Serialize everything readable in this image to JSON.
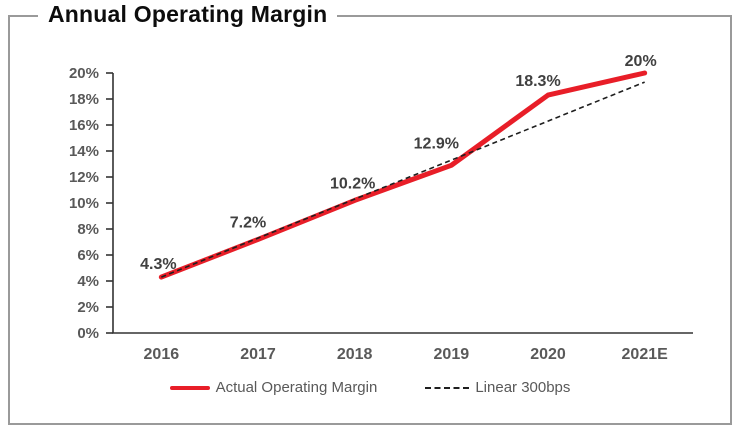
{
  "title": "Annual Operating Margin",
  "chart_data": {
    "type": "line",
    "categories": [
      "2016",
      "2017",
      "2018",
      "2019",
      "2020",
      "2021E"
    ],
    "series": [
      {
        "name": "Actual Operating Margin",
        "values": [
          4.3,
          7.2,
          10.2,
          12.9,
          18.3,
          20.0
        ],
        "labels": [
          "4.3%",
          "7.2%",
          "10.2%",
          "12.9%",
          "18.3%",
          "20%"
        ],
        "color": "#e81e28",
        "style": "solid"
      },
      {
        "name": "Linear 300bps",
        "values": [
          4.3,
          7.3,
          10.3,
          13.3,
          16.3,
          19.3
        ],
        "color": "#1f1f1f",
        "style": "dashed"
      }
    ],
    "title": "Annual Operating Margin",
    "xlabel": "",
    "ylabel": "",
    "ylim": [
      0,
      20
    ],
    "ytick_step": 2,
    "ytick_labels": [
      "0%",
      "2%",
      "4%",
      "6%",
      "8%",
      "10%",
      "12%",
      "14%",
      "16%",
      "18%",
      "20%"
    ],
    "grid": false,
    "legend_position": "bottom"
  },
  "colors": {
    "accent_red": "#e81e28",
    "dashed_line": "#1f1f1f",
    "axis_line": "#333333",
    "axis_text": "#595959",
    "data_label_text": "#404040",
    "frame_border": "#9a9a9a",
    "title_text": "#0d0d0d"
  }
}
